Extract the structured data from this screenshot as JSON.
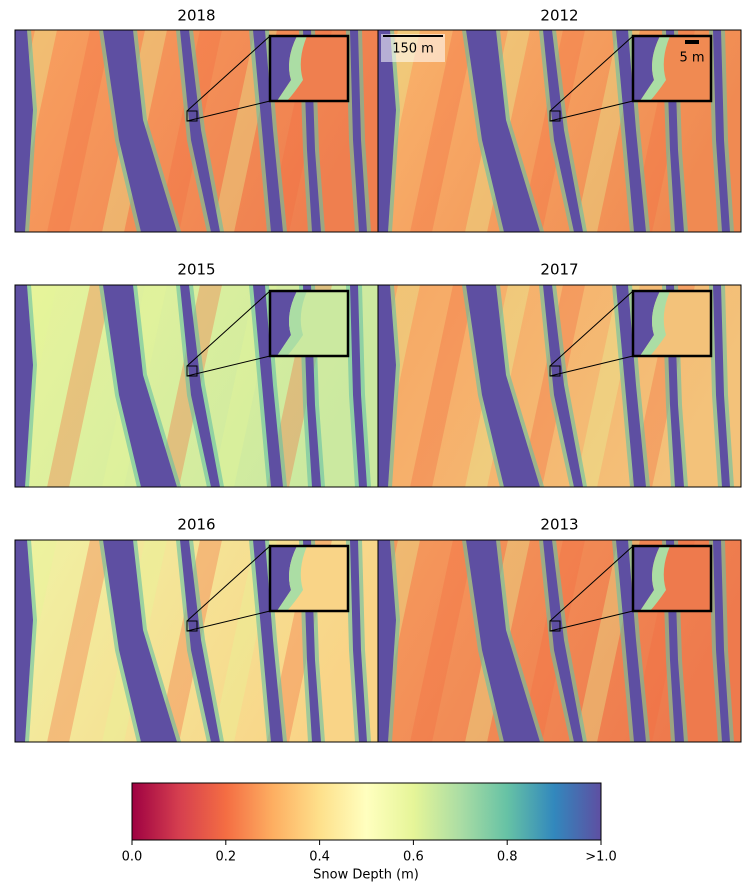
{
  "panels": [
    {
      "title": "2018"
    },
    {
      "title": "2012"
    },
    {
      "title": "2015"
    },
    {
      "title": "2017"
    },
    {
      "title": "2016"
    },
    {
      "title": "2013"
    }
  ],
  "scale_bars": [
    {
      "label": "150 m"
    },
    {
      "label": "5 m"
    }
  ],
  "colorbar": {
    "label": "Snow Depth (m)",
    "clim": [
      0,
      1
    ],
    "ticks": [
      {
        "value": 0,
        "label": "0.0"
      },
      0.2,
      0.4,
      0.6,
      0.8,
      {
        "value": 1,
        "label": ">1.0"
      }
    ]
  }
}
